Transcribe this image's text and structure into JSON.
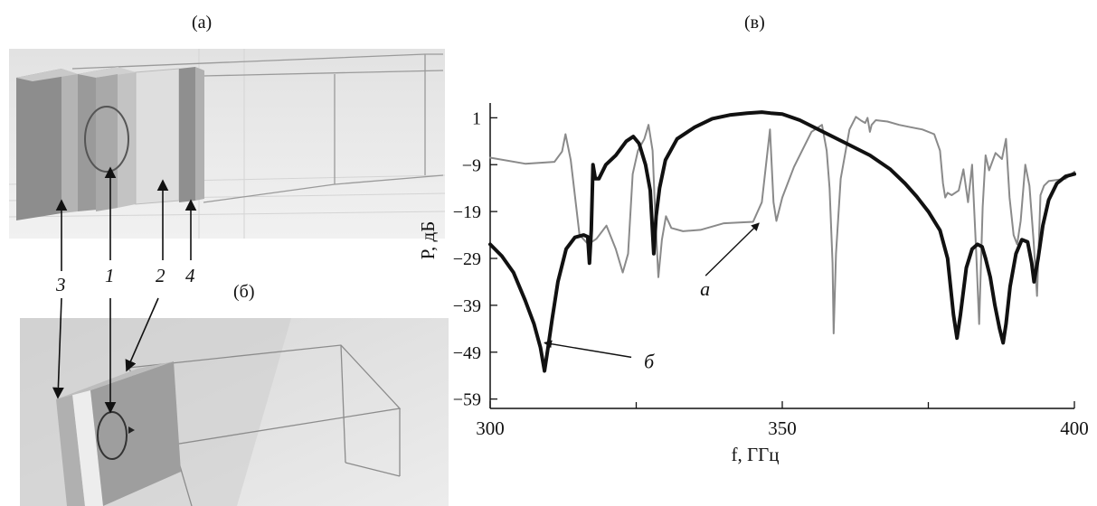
{
  "figure": {
    "panel_a_label": "(а)",
    "panel_b_label": "(б)",
    "panel_c_label": "(в)"
  },
  "callouts": {
    "n3": "3",
    "n1": "1",
    "n2": "2",
    "n4": "4"
  },
  "chart_data": {
    "type": "line",
    "xlabel": "f, ГГц",
    "ylabel": "P, дБ",
    "xlim": [
      300,
      400
    ],
    "ylim": [
      -61,
      3
    ],
    "xticks": [
      300,
      350,
      400
    ],
    "yticks": [
      1,
      -9,
      -19,
      -29,
      -39,
      -49,
      -59
    ],
    "x_minor_ticks": [
      325,
      375
    ],
    "grid": false,
    "legend": "none",
    "series": [
      {
        "name": "а",
        "color": "#8a8a8a",
        "x": [
          300,
          306,
          311,
          312.3,
          312.9,
          313.8,
          315.3,
          316.8,
          318.2,
          319.9,
          321.5,
          322.7,
          323.6,
          324.4,
          325.3,
          326.4,
          327.1,
          327.8,
          328.3,
          328.8,
          329.4,
          330.1,
          331,
          333,
          336,
          340,
          343,
          345,
          346.5,
          347.3,
          347.9,
          348.5,
          349,
          350,
          352,
          355,
          356.8,
          357.6,
          358.1,
          358.6,
          358.8,
          359.2,
          360,
          361.5,
          362.6,
          363.5,
          364.2,
          364.6,
          365,
          365.3,
          366,
          368,
          370,
          372,
          374,
          376,
          377,
          377.5,
          377.9,
          378.3,
          379,
          380.2,
          381,
          381.8,
          382.5,
          383.2,
          383.7,
          384.3,
          384.8,
          385.4,
          386.5,
          387.6,
          388.3,
          388.9,
          389.6,
          390.2,
          390.8,
          391.6,
          392.3,
          393,
          393.6,
          394.2,
          394.8,
          395.6,
          397.3,
          398.5,
          400
        ],
        "y": [
          -7.5,
          -8.8,
          -8.4,
          -6.2,
          -2.5,
          -8,
          -24,
          -26,
          -24.8,
          -22,
          -27,
          -32,
          -28,
          -11,
          -6,
          -3.5,
          -0.5,
          -6,
          -21,
          -33,
          -25,
          -20,
          -22.5,
          -23.2,
          -22.9,
          -21.5,
          -21.3,
          -21.2,
          -17,
          -8,
          -1.5,
          -17,
          -21,
          -16,
          -9.5,
          -2,
          -0.5,
          -6,
          -14,
          -30,
          -45,
          -28,
          -12,
          -1.5,
          1.2,
          0.4,
          -0.1,
          1,
          -2,
          -0.5,
          0.5,
          0.2,
          -0.5,
          -1,
          -1.5,
          -2.5,
          -6,
          -13,
          -16,
          -15,
          -15.5,
          -14.5,
          -10,
          -17,
          -9,
          -28,
          -43,
          -18,
          -7,
          -10.2,
          -6.5,
          -7.8,
          -3.5,
          -16,
          -24,
          -26,
          -21,
          -9,
          -13.5,
          -25,
          -37,
          -15.5,
          -13.5,
          -12.5,
          -12.2,
          -12,
          -10.5
        ]
      },
      {
        "name": "б",
        "color": "#111111",
        "x": [
          300,
          302,
          304,
          306,
          307.5,
          308.6,
          309.3,
          309.9,
          310.6,
          311.6,
          313,
          314.5,
          316,
          316.7,
          317,
          317.3,
          317.6,
          318,
          318.6,
          319.8,
          321.5,
          323.3,
          324.5,
          325.5,
          326.6,
          327.4,
          328,
          328.4,
          329,
          330,
          332,
          335,
          338,
          341,
          344,
          346.5,
          348,
          350,
          353,
          357,
          361,
          365,
          368.5,
          371,
          373,
          375,
          377,
          378.3,
          379.3,
          379.9,
          380.5,
          381.5,
          382.5,
          383.4,
          384.2,
          384.8,
          385.6,
          386.4,
          387.2,
          387.8,
          388.3,
          389,
          390,
          391,
          392,
          392.7,
          393.1,
          393.8,
          394.6,
          395.6,
          397,
          398.5,
          400
        ],
        "y": [
          -26,
          -28.5,
          -32,
          -38,
          -43,
          -48,
          -53,
          -48,
          -42,
          -34,
          -27,
          -24.5,
          -24,
          -24.4,
          -30,
          -23,
          -9,
          -12,
          -12,
          -9,
          -7,
          -4,
          -3,
          -4.5,
          -9,
          -14.5,
          -28,
          -20,
          -14,
          -8,
          -3.5,
          -1,
          0.8,
          1.6,
          2,
          2.2,
          2,
          1.8,
          0.5,
          -2,
          -4.5,
          -7,
          -10,
          -13,
          -15.8,
          -19,
          -23,
          -29,
          -41,
          -46,
          -41,
          -31,
          -27,
          -26,
          -26.5,
          -29,
          -33,
          -39,
          -44,
          -47,
          -43,
          -35,
          -28,
          -25,
          -25.5,
          -30,
          -34,
          -29,
          -22,
          -16.5,
          -13,
          -11.5,
          -11
        ]
      }
    ],
    "annotations": [
      {
        "text": "а",
        "x": 346,
        "y": -21.5
      },
      {
        "text": "б",
        "x": 309.3,
        "y": -47
      }
    ]
  }
}
